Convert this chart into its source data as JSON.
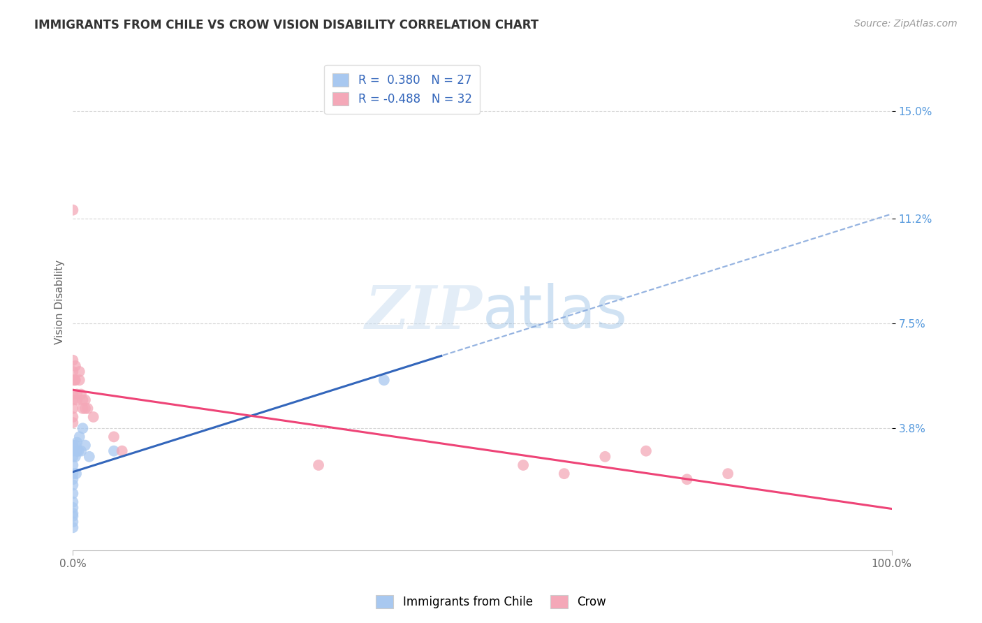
{
  "title": "IMMIGRANTS FROM CHILE VS CROW VISION DISABILITY CORRELATION CHART",
  "source_text": "Source: ZipAtlas.com",
  "ylabel": "Vision Disability",
  "x_tick_labels": [
    "0.0%",
    "100.0%"
  ],
  "y_tick_labels": [
    "15.0%",
    "11.2%",
    "7.5%",
    "3.8%"
  ],
  "y_tick_values": [
    0.15,
    0.112,
    0.075,
    0.038
  ],
  "xlim": [
    0.0,
    1.0
  ],
  "ylim": [
    -0.005,
    0.17
  ],
  "legend_entry1": "R =  0.380   N = 27",
  "legend_entry2": "R = -0.488   N = 32",
  "legend_label1": "Immigrants from Chile",
  "legend_label2": "Crow",
  "blue_color": "#A8C8F0",
  "pink_color": "#F4A8B8",
  "blue_line_color": "#3366BB",
  "pink_line_color": "#EE4477",
  "trendline_dash_color": "#88AADD",
  "background_color": "#FFFFFF",
  "grid_color": "#CCCCCC",
  "watermark_color": "#C8DCF0",
  "title_color": "#333333",
  "axis_label_color": "#666666",
  "ytick_color": "#5599DD",
  "blue_scatter": [
    [
      0.0,
      0.01
    ],
    [
      0.0,
      0.012
    ],
    [
      0.0,
      0.008
    ],
    [
      0.0,
      0.005
    ],
    [
      0.0,
      0.015
    ],
    [
      0.0,
      0.02
    ],
    [
      0.0,
      0.018
    ],
    [
      0.0,
      0.022
    ],
    [
      0.0,
      0.025
    ],
    [
      0.0,
      0.028
    ],
    [
      0.0,
      0.03
    ],
    [
      0.0,
      0.032
    ],
    [
      0.0,
      0.003
    ],
    [
      0.0,
      0.007
    ],
    [
      0.003,
      0.028
    ],
    [
      0.003,
      0.032
    ],
    [
      0.004,
      0.022
    ],
    [
      0.005,
      0.03
    ],
    [
      0.005,
      0.033
    ],
    [
      0.007,
      0.03
    ],
    [
      0.008,
      0.035
    ],
    [
      0.01,
      0.03
    ],
    [
      0.012,
      0.038
    ],
    [
      0.015,
      0.032
    ],
    [
      0.02,
      0.028
    ],
    [
      0.05,
      0.03
    ],
    [
      0.38,
      0.055
    ]
  ],
  "pink_scatter": [
    [
      0.0,
      0.115
    ],
    [
      0.0,
      0.062
    ],
    [
      0.0,
      0.058
    ],
    [
      0.0,
      0.055
    ],
    [
      0.0,
      0.05
    ],
    [
      0.0,
      0.048
    ],
    [
      0.0,
      0.045
    ],
    [
      0.0,
      0.042
    ],
    [
      0.0,
      0.04
    ],
    [
      0.002,
      0.055
    ],
    [
      0.003,
      0.06
    ],
    [
      0.003,
      0.055
    ],
    [
      0.005,
      0.05
    ],
    [
      0.005,
      0.048
    ],
    [
      0.008,
      0.058
    ],
    [
      0.008,
      0.055
    ],
    [
      0.01,
      0.05
    ],
    [
      0.012,
      0.048
    ],
    [
      0.012,
      0.045
    ],
    [
      0.015,
      0.048
    ],
    [
      0.015,
      0.045
    ],
    [
      0.018,
      0.045
    ],
    [
      0.025,
      0.042
    ],
    [
      0.05,
      0.035
    ],
    [
      0.06,
      0.03
    ],
    [
      0.3,
      0.025
    ],
    [
      0.55,
      0.025
    ],
    [
      0.6,
      0.022
    ],
    [
      0.65,
      0.028
    ],
    [
      0.7,
      0.03
    ],
    [
      0.75,
      0.02
    ],
    [
      0.8,
      0.022
    ]
  ]
}
